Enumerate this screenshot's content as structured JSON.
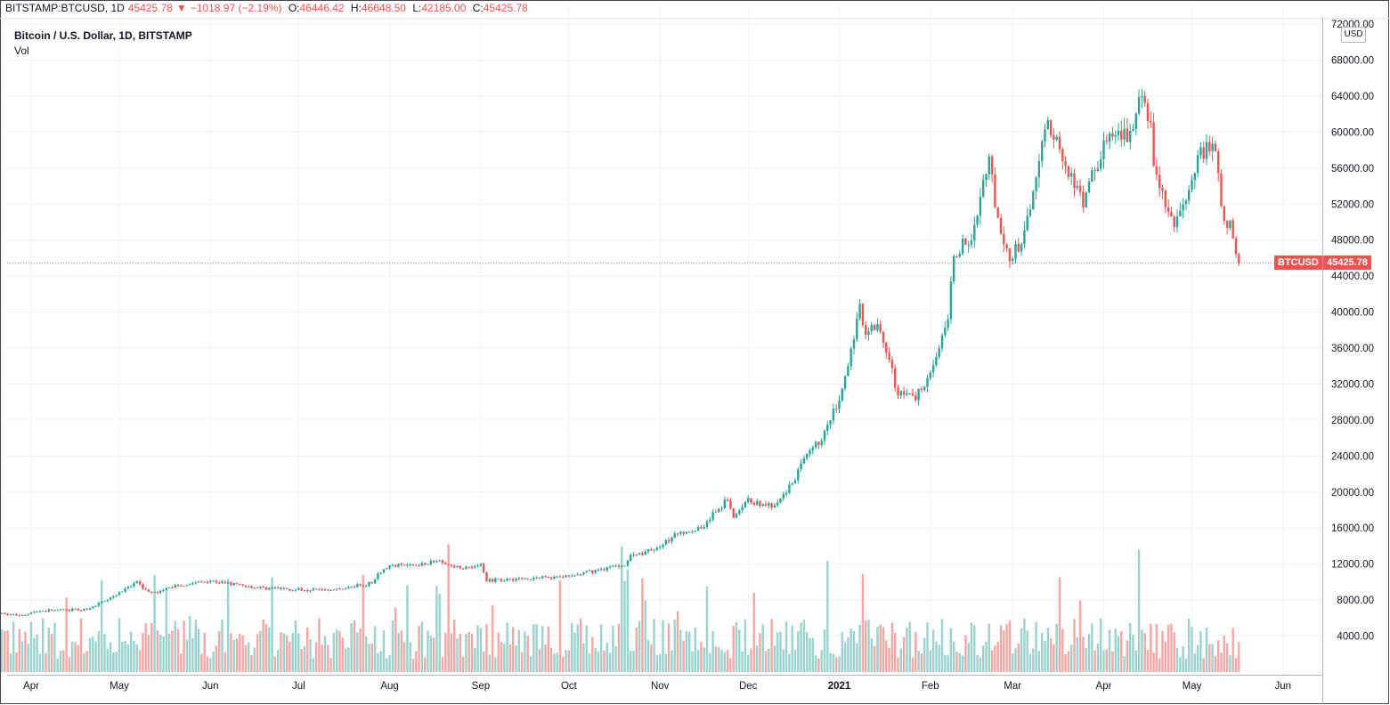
{
  "header": {
    "symbol": "BITSTAMP:BTCUSD, 1D",
    "last": "45425.78",
    "arrow": "▼",
    "change": "−1018.97 (−2.19%)",
    "o_label": "O:",
    "o_value": "46446.42",
    "h_label": "H:",
    "h_value": "46648.50",
    "l_label": "L:",
    "l_value": "42185.00",
    "c_label": "C:",
    "c_value": "45425.78",
    "title": "Bitcoin / U.S. Dollar, 1D, BITSTAMP",
    "volume_label": "Vol"
  },
  "price_scale": {
    "currency": "USD",
    "ticks": [
      "72000.00",
      "68000.00",
      "64000.00",
      "60000.00",
      "56000.00",
      "52000.00",
      "48000.00",
      "44000.00",
      "40000.00",
      "36000.00",
      "32000.00",
      "28000.00",
      "24000.00",
      "20000.00",
      "16000.00",
      "12000.00",
      "8000.00",
      "4000.00"
    ]
  },
  "last_price_tag": {
    "symbol": "BTCUSD",
    "value": "45425.78"
  },
  "colors": {
    "up": "#26a69a",
    "down": "#ef5350",
    "up_vol": "#9ad3cd",
    "down_vol": "#f5a7a5",
    "grid": "#f0f3fa"
  },
  "chart_data": {
    "type": "candlestick",
    "title": "Bitcoin / U.S. Dollar, 1D, BITSTAMP",
    "interval": "1D",
    "ylim": [
      0,
      72000
    ],
    "x_ticks": [
      {
        "label": "Apr",
        "date": "2020-04-01"
      },
      {
        "label": "May",
        "date": "2020-05-01"
      },
      {
        "label": "Jun",
        "date": "2020-06-01"
      },
      {
        "label": "Jul",
        "date": "2020-07-01"
      },
      {
        "label": "Aug",
        "date": "2020-08-01"
      },
      {
        "label": "Sep",
        "date": "2020-09-01"
      },
      {
        "label": "Oct",
        "date": "2020-10-01"
      },
      {
        "label": "Nov",
        "date": "2020-11-01"
      },
      {
        "label": "Dec",
        "date": "2020-12-01"
      },
      {
        "label": "2021",
        "date": "2021-01-01"
      },
      {
        "label": "Feb",
        "date": "2021-02-01"
      },
      {
        "label": "Mar",
        "date": "2021-03-01"
      },
      {
        "label": "Apr",
        "date": "2021-04-01"
      },
      {
        "label": "May",
        "date": "2021-05-01"
      },
      {
        "label": "Jun",
        "date": "2021-06-01"
      }
    ],
    "last_close": 45425.78,
    "close_series": [
      [
        "2020-03-22",
        6500
      ],
      [
        "2020-03-28",
        6300
      ],
      [
        "2020-04-04",
        6800
      ],
      [
        "2020-04-12",
        6900
      ],
      [
        "2020-04-20",
        6900
      ],
      [
        "2020-04-30",
        8650
      ],
      [
        "2020-05-07",
        9900
      ],
      [
        "2020-05-12",
        8700
      ],
      [
        "2020-05-20",
        9600
      ],
      [
        "2020-06-01",
        10150
      ],
      [
        "2020-06-15",
        9450
      ],
      [
        "2020-07-01",
        9150
      ],
      [
        "2020-07-15",
        9200
      ],
      [
        "2020-07-26",
        9900
      ],
      [
        "2020-07-28",
        11000
      ],
      [
        "2020-08-01",
        11800
      ],
      [
        "2020-08-10",
        11900
      ],
      [
        "2020-08-17",
        12300
      ],
      [
        "2020-08-25",
        11500
      ],
      [
        "2020-09-01",
        11900
      ],
      [
        "2020-09-03",
        10200
      ],
      [
        "2020-09-10",
        10300
      ],
      [
        "2020-09-22",
        10500
      ],
      [
        "2020-10-01",
        10600
      ],
      [
        "2020-10-10",
        11300
      ],
      [
        "2020-10-20",
        12000
      ],
      [
        "2020-10-22",
        12900
      ],
      [
        "2020-10-31",
        13800
      ],
      [
        "2020-11-08",
        15500
      ],
      [
        "2020-11-15",
        16000
      ],
      [
        "2020-11-24",
        19200
      ],
      [
        "2020-11-26",
        17100
      ],
      [
        "2020-12-01",
        19000
      ],
      [
        "2020-12-10",
        18300
      ],
      [
        "2020-12-16",
        21000
      ],
      [
        "2020-12-20",
        23500
      ],
      [
        "2020-12-27",
        26500
      ],
      [
        "2021-01-02",
        31000
      ],
      [
        "2021-01-08",
        40500
      ],
      [
        "2021-01-10",
        38000
      ],
      [
        "2021-01-14",
        39000
      ],
      [
        "2021-01-21",
        31000
      ],
      [
        "2021-01-27",
        30500
      ],
      [
        "2021-02-01",
        33500
      ],
      [
        "2021-02-07",
        38800
      ],
      [
        "2021-02-09",
        46500
      ],
      [
        "2021-02-15",
        48000
      ],
      [
        "2021-02-21",
        57500
      ],
      [
        "2021-02-24",
        49500
      ],
      [
        "2021-02-28",
        45500
      ],
      [
        "2021-03-05",
        48500
      ],
      [
        "2021-03-10",
        57500
      ],
      [
        "2021-03-13",
        61000
      ],
      [
        "2021-03-17",
        58000
      ],
      [
        "2021-03-25",
        52000
      ],
      [
        "2021-04-01",
        58800
      ],
      [
        "2021-04-10",
        59500
      ],
      [
        "2021-04-13",
        63500
      ],
      [
        "2021-04-17",
        61200
      ],
      [
        "2021-04-18",
        56000
      ],
      [
        "2021-04-25",
        49000
      ],
      [
        "2021-05-03",
        57300
      ],
      [
        "2021-05-08",
        58500
      ],
      [
        "2021-05-10",
        55500
      ],
      [
        "2021-05-12",
        49400
      ],
      [
        "2021-05-14",
        49800
      ],
      [
        "2021-05-16",
        46400
      ],
      [
        "2021-05-17",
        45425.78
      ]
    ],
    "volume_ylim": [
      0,
      16000
    ],
    "volume_ticks": [
      "8000.00",
      "4000.00"
    ]
  }
}
